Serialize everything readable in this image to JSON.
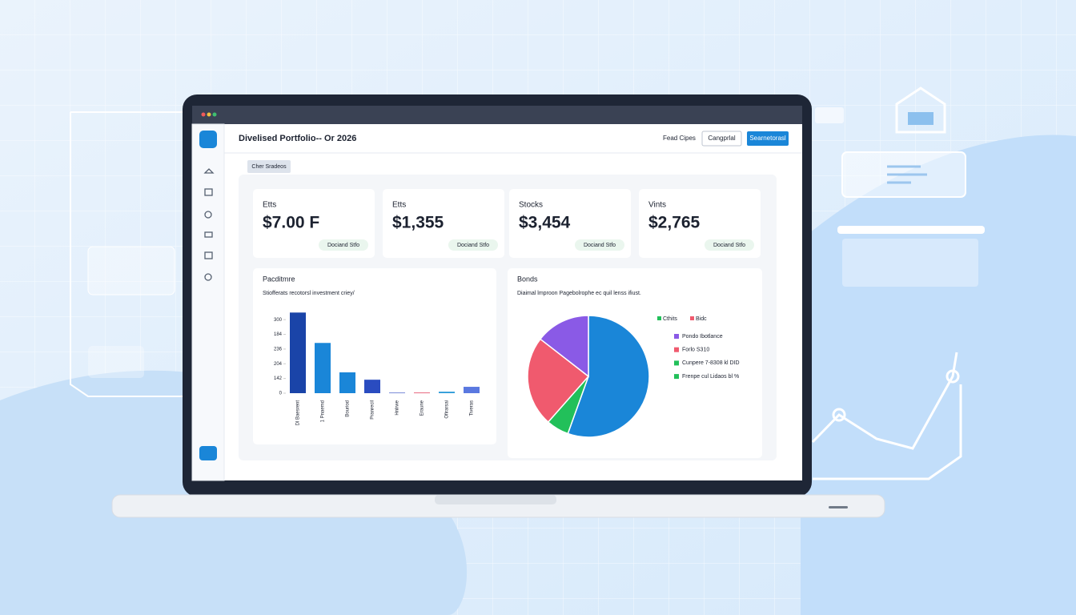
{
  "header": {
    "title": "Divelised Portfolio-- Or 2026",
    "link": "Fead Cipes",
    "button_secondary": "Cangprlal",
    "button_primary": "Searnetorasl"
  },
  "tag": "Cher Sradeos",
  "cards": [
    {
      "label": "Etts",
      "value": "$7.00 F",
      "badge": "Dociand Stfo"
    },
    {
      "label": "Etts",
      "value": "$1,355",
      "badge": "Dociand Stfo"
    },
    {
      "label": "Stocks",
      "value": "$3,454",
      "badge": "Dociand Stfo"
    },
    {
      "label": "Vints",
      "value": "$2,765",
      "badge": "Dociand Stfo"
    }
  ],
  "chart_data": [
    {
      "type": "bar",
      "title": "Pacditmre",
      "subtitle": "Stiofferats recotorsl investment criey/",
      "categories": [
        "Dl Baesrent",
        "1 Pnaemd",
        "Bouriod",
        "Pranrecil",
        "Hnlrwe",
        "Eraune",
        "Ofirarsai",
        "Tiveras"
      ],
      "values": [
        329,
        205,
        85,
        55,
        3,
        3,
        6,
        26
      ],
      "colors": [
        "#1a44a8",
        "#1a86d8",
        "#1a86d8",
        "#2a4cc0",
        "#7a8ad8",
        "#e86a80",
        "#2a9ad8",
        "#5a78e0"
      ],
      "ylim": [
        0,
        330
      ],
      "yticks": [
        0,
        {
          "value": 60,
          "label": "142"
        },
        {
          "value": 120,
          "label": "204"
        },
        {
          "value": 180,
          "label": "236"
        },
        {
          "value": 240,
          "label": "184"
        },
        300
      ]
    },
    {
      "type": "pie",
      "title": "Bonds",
      "subtitle": "Diaimal lmproon Pagebolrophe ec quil lenss ifiust.",
      "values": [
        55.5,
        6,
        24,
        14.5
      ],
      "colors": [
        "#1a86d8",
        "#22c05a",
        "#f05a6e",
        "#8a5ae6"
      ],
      "legend_top": [
        {
          "label": "Cthits",
          "color": "#22c05a"
        },
        {
          "label": "Bidc",
          "color": "#f05a6e"
        }
      ],
      "legend": [
        {
          "label": "Pondo Ibotlance",
          "color": "#8a5ae6"
        },
        {
          "label": "Forlo S310",
          "color": "#f05a6e"
        },
        {
          "label": "Cunpere 7-8308 kl DID",
          "color": "#22c05a"
        },
        {
          "label": "Frenpe cul Lidaos bl %",
          "color": "#22c05a"
        }
      ]
    }
  ]
}
